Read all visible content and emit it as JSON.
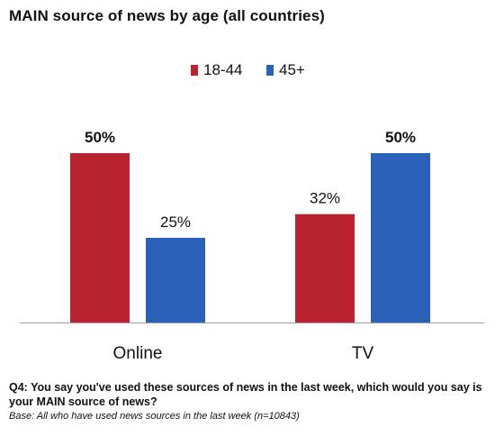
{
  "chart_data": {
    "type": "bar",
    "title": "MAIN source of news by age (all countries)",
    "categories": [
      "Online",
      "TV"
    ],
    "series": [
      {
        "name": "18-44",
        "values": [
          50,
          32
        ],
        "labels": [
          "50%",
          "32%"
        ],
        "color": "#b8232f"
      },
      {
        "name": "45+",
        "values": [
          25,
          50
        ],
        "labels": [
          "25%",
          "50%"
        ],
        "color": "#2b61b8"
      }
    ],
    "ylim": [
      0,
      60
    ],
    "grid": false,
    "legend_position": "top-center",
    "question": "Q4: You say you've used these sources of news in the last week, which would you say is your MAIN source of news?",
    "base": "Base: All who have used news sources in the last week (n=10843)"
  }
}
